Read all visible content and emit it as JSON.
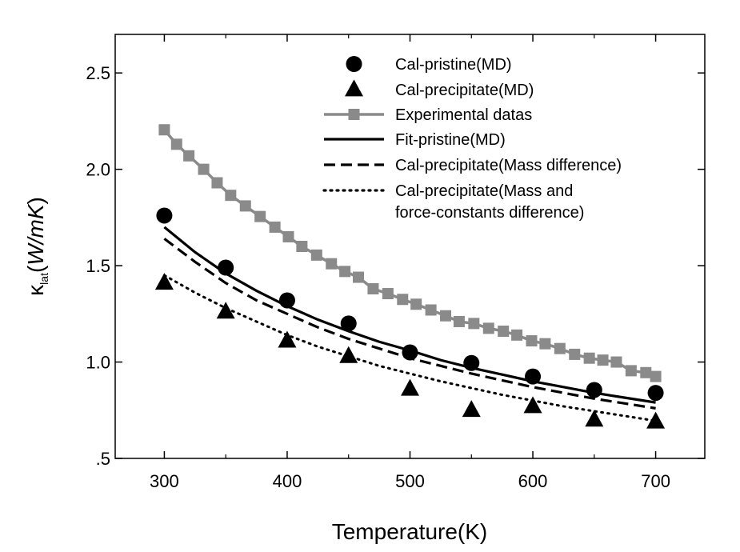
{
  "chart_data": {
    "type": "line",
    "title": "",
    "xlabel": "Temperature(K)",
    "ylabel": {
      "symbol": "κ",
      "subscript": "lat",
      "units_open": "(",
      "units": "W/mK",
      "units_close": ")"
    },
    "xlim": [
      260,
      740
    ],
    "ylim": [
      0.5,
      2.7
    ],
    "x_ticks": [
      300,
      400,
      500,
      600,
      700
    ],
    "x_tick_labels": [
      "300",
      "400",
      "500",
      "600",
      "700"
    ],
    "y_ticks": [
      0.5,
      1.0,
      1.5,
      2.0,
      2.5
    ],
    "y_tick_labels": [
      ".5",
      "1.0",
      "1.5",
      "2.0",
      "2.5"
    ],
    "legend_position": "top-right",
    "series": [
      {
        "name": "Cal-pristine(MD)",
        "kind": "markers",
        "marker": "circle",
        "color": "#000000",
        "x": [
          300,
          350,
          400,
          450,
          500,
          550,
          600,
          650,
          700
        ],
        "y": [
          1.76,
          1.49,
          1.32,
          1.2,
          1.05,
          0.995,
          0.925,
          0.855,
          0.84
        ]
      },
      {
        "name": "Cal-precipitate(MD)",
        "kind": "markers",
        "marker": "triangle",
        "color": "#000000",
        "x": [
          300,
          350,
          400,
          450,
          500,
          550,
          600,
          650,
          700
        ],
        "y": [
          1.41,
          1.26,
          1.11,
          1.03,
          0.86,
          0.75,
          0.77,
          0.7,
          0.69
        ]
      },
      {
        "name": "Experimental datas",
        "kind": "line-markers",
        "marker": "square",
        "color": "#8a8a8a",
        "x": [
          300,
          310,
          320,
          332,
          343,
          354,
          366,
          378,
          390,
          401,
          412,
          424,
          436,
          447,
          458,
          470,
          482,
          494,
          505,
          517,
          529,
          540,
          552,
          564,
          576,
          587,
          599,
          610,
          622,
          634,
          646,
          657,
          668,
          680,
          692,
          700
        ],
        "y": [
          2.205,
          2.13,
          2.07,
          2.0,
          1.93,
          1.865,
          1.81,
          1.755,
          1.7,
          1.65,
          1.6,
          1.555,
          1.51,
          1.47,
          1.44,
          1.38,
          1.355,
          1.325,
          1.3,
          1.27,
          1.24,
          1.21,
          1.2,
          1.175,
          1.16,
          1.14,
          1.11,
          1.095,
          1.07,
          1.04,
          1.02,
          1.01,
          1.0,
          0.955,
          0.945,
          0.925
        ]
      },
      {
        "name": "Fit-pristine(MD)",
        "kind": "line",
        "dash": "solid",
        "color": "#000000",
        "x": [
          300,
          325,
          350,
          375,
          400,
          425,
          450,
          475,
          500,
          525,
          550,
          575,
          600,
          625,
          650,
          675,
          700
        ],
        "y": [
          1.7,
          1.57,
          1.46,
          1.37,
          1.29,
          1.22,
          1.16,
          1.105,
          1.06,
          1.01,
          0.97,
          0.935,
          0.9,
          0.87,
          0.84,
          0.815,
          0.79
        ]
      },
      {
        "name": "Cal-precipitate(Mass difference)",
        "kind": "line",
        "dash": "dashed",
        "color": "#000000",
        "x": [
          300,
          325,
          350,
          375,
          400,
          425,
          450,
          475,
          500,
          525,
          550,
          575,
          600,
          625,
          650,
          675,
          700
        ],
        "y": [
          1.64,
          1.52,
          1.41,
          1.32,
          1.25,
          1.18,
          1.12,
          1.07,
          1.02,
          0.98,
          0.94,
          0.905,
          0.87,
          0.84,
          0.81,
          0.785,
          0.76
        ]
      },
      {
        "name": "Cal-precipitate(Mass and force-constants difference)",
        "name_lines": [
          "Cal-precipitate(Mass and",
          "force-constants difference)"
        ],
        "kind": "line",
        "dash": "dotted",
        "color": "#000000",
        "x": [
          300,
          325,
          350,
          375,
          400,
          425,
          450,
          475,
          500,
          525,
          550,
          575,
          600,
          625,
          650,
          675,
          700
        ],
        "y": [
          1.45,
          1.36,
          1.28,
          1.21,
          1.14,
          1.08,
          1.03,
          0.98,
          0.94,
          0.9,
          0.865,
          0.83,
          0.8,
          0.77,
          0.745,
          0.72,
          0.695
        ]
      }
    ]
  }
}
